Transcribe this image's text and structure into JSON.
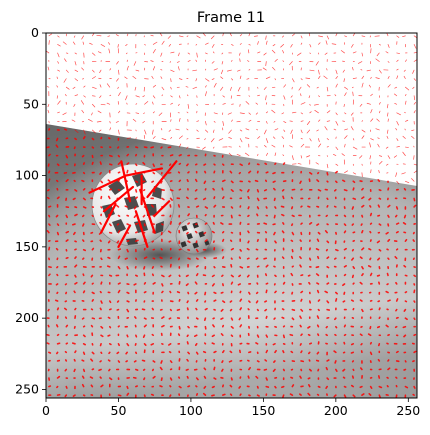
{
  "figure": {
    "title": "Frame 11",
    "image_description_icon": "sphere-scene-icon",
    "x_axis": {
      "ticks": [
        0,
        50,
        100,
        150,
        200,
        250
      ],
      "labels": [
        "0",
        "50",
        "100",
        "150",
        "200",
        "250"
      ],
      "range": [
        0,
        256
      ]
    },
    "y_axis": {
      "ticks": [
        0,
        50,
        100,
        150,
        200,
        250
      ],
      "labels": [
        "0",
        "50",
        "100",
        "150",
        "200",
        "250"
      ],
      "range": [
        0,
        256
      ],
      "inverted": true
    },
    "colors": {
      "flow_vectors": "#ff0000",
      "background_top": "#ffffff",
      "floor_light": "#c8c8c8",
      "floor_dark": "#707070"
    }
  }
}
